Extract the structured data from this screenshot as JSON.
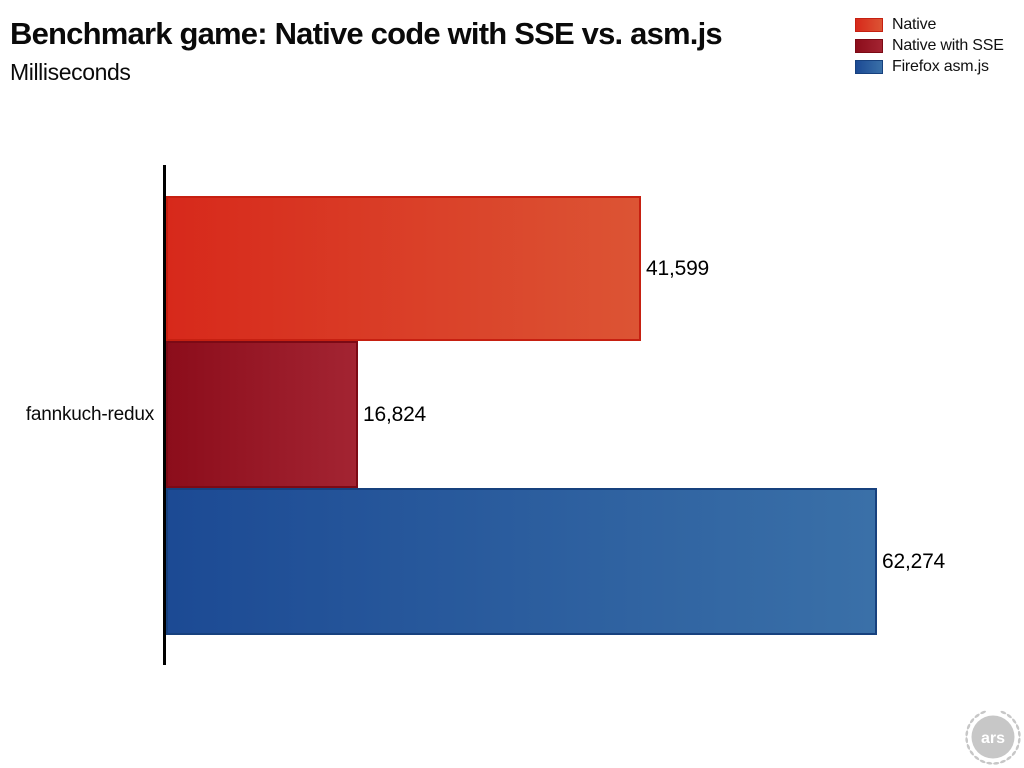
{
  "header": {
    "title": "Benchmark game: Native code with SSE vs. asm.js",
    "subtitle": "Milliseconds"
  },
  "chart_data": {
    "type": "bar",
    "orientation": "horizontal",
    "title": "Benchmark game: Native code with SSE vs. asm.js",
    "ylabel": "Milliseconds",
    "xlabel": "",
    "categories": [
      "fannkuch-redux"
    ],
    "series": [
      {
        "name": "Native",
        "values": [
          41599
        ],
        "value_labels": [
          "41,599"
        ],
        "fill_start": "#d7291b",
        "fill_end": "#dc5434",
        "border": "#c62011"
      },
      {
        "name": "Native with SSE",
        "values": [
          16824
        ],
        "value_labels": [
          "16,824"
        ],
        "fill_start": "#8c0d1b",
        "fill_end": "#a32432",
        "border": "#7c0a15"
      },
      {
        "name": "Firefox asm.js",
        "values": [
          62274
        ],
        "value_labels": [
          "62,274"
        ],
        "fill_start": "#1c4a94",
        "fill_end": "#3a70a8",
        "border": "#17417e"
      }
    ],
    "xlim": [
      0,
      62274
    ],
    "grid": false,
    "legend_position": "top-right",
    "axis_color": "#000000"
  },
  "footer": {
    "logo_text": "ars",
    "logo_color": "#c7c7c7"
  }
}
